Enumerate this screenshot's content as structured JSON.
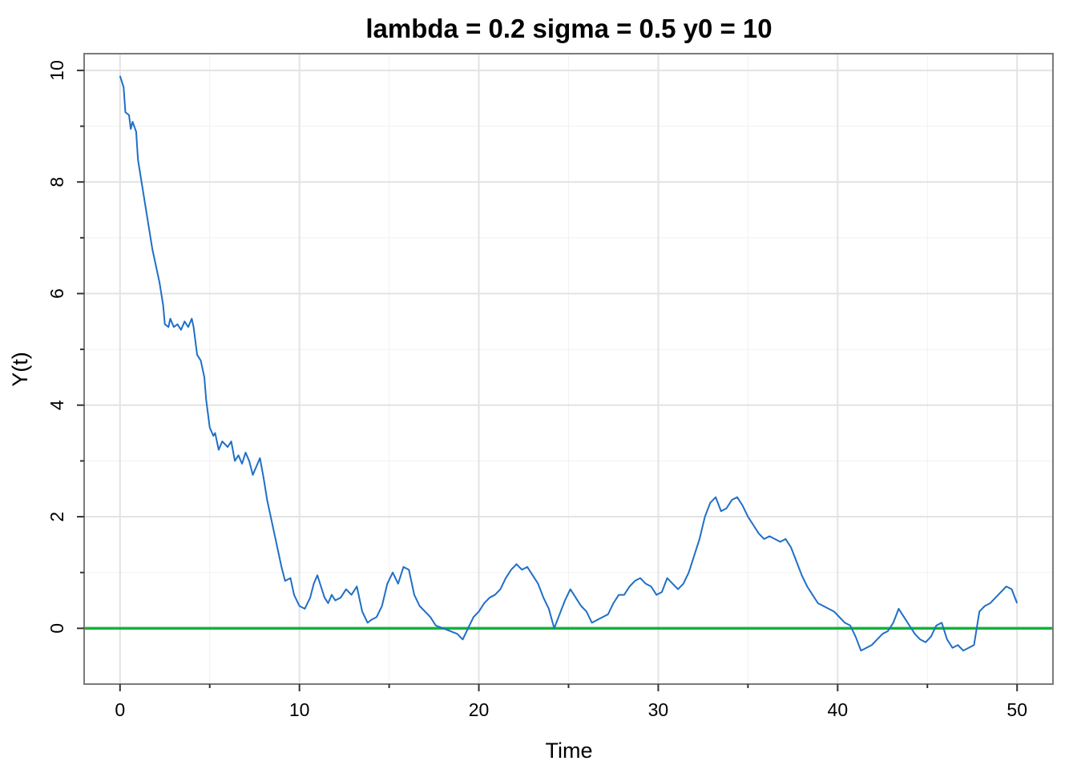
{
  "chart_data": {
    "type": "line",
    "title": "lambda = 0.2 sigma = 0.5 y0 = 10",
    "xlabel": "Time",
    "ylabel": "Y(t)",
    "xlim": [
      -2,
      52
    ],
    "ylim": [
      -1,
      10.3
    ],
    "x_ticks": [
      0,
      10,
      20,
      30,
      40,
      50
    ],
    "x_tick_labels": [
      "0",
      "10",
      "20",
      "30",
      "40",
      "50"
    ],
    "y_ticks": [
      0,
      2,
      4,
      6,
      8,
      10
    ],
    "y_tick_labels": [
      "0",
      "2",
      "4",
      "6",
      "8",
      "10"
    ],
    "grid": true,
    "legend": "none",
    "series": [
      {
        "color": "#1f6fc6",
        "points": [
          [
            0,
            9.9
          ],
          [
            0.2,
            9.7
          ],
          [
            0.3,
            9.25
          ],
          [
            0.5,
            9.2
          ],
          [
            0.6,
            8.95
          ],
          [
            0.7,
            9.08
          ],
          [
            0.9,
            8.9
          ],
          [
            1.0,
            8.4
          ],
          [
            1.2,
            8.0
          ],
          [
            1.3,
            7.8
          ],
          [
            1.5,
            7.4
          ],
          [
            1.6,
            7.2
          ],
          [
            1.8,
            6.8
          ],
          [
            2.0,
            6.5
          ],
          [
            2.2,
            6.2
          ],
          [
            2.4,
            5.8
          ],
          [
            2.5,
            5.45
          ],
          [
            2.7,
            5.4
          ],
          [
            2.8,
            5.55
          ],
          [
            3.0,
            5.4
          ],
          [
            3.2,
            5.45
          ],
          [
            3.4,
            5.35
          ],
          [
            3.6,
            5.5
          ],
          [
            3.8,
            5.4
          ],
          [
            4.0,
            5.55
          ],
          [
            4.1,
            5.4
          ],
          [
            4.3,
            4.9
          ],
          [
            4.5,
            4.8
          ],
          [
            4.7,
            4.5
          ],
          [
            4.8,
            4.1
          ],
          [
            5.0,
            3.6
          ],
          [
            5.2,
            3.45
          ],
          [
            5.3,
            3.5
          ],
          [
            5.5,
            3.2
          ],
          [
            5.7,
            3.35
          ],
          [
            6.0,
            3.25
          ],
          [
            6.2,
            3.35
          ],
          [
            6.4,
            3.0
          ],
          [
            6.6,
            3.1
          ],
          [
            6.8,
            2.95
          ],
          [
            7.0,
            3.15
          ],
          [
            7.2,
            3.0
          ],
          [
            7.4,
            2.75
          ],
          [
            7.6,
            2.9
          ],
          [
            7.8,
            3.05
          ],
          [
            8.0,
            2.7
          ],
          [
            8.2,
            2.3
          ],
          [
            8.4,
            2.0
          ],
          [
            8.6,
            1.7
          ],
          [
            8.8,
            1.4
          ],
          [
            9.0,
            1.1
          ],
          [
            9.2,
            0.85
          ],
          [
            9.5,
            0.9
          ],
          [
            9.7,
            0.6
          ],
          [
            10.0,
            0.4
          ],
          [
            10.3,
            0.35
          ],
          [
            10.6,
            0.55
          ],
          [
            10.8,
            0.8
          ],
          [
            11.0,
            0.95
          ],
          [
            11.2,
            0.75
          ],
          [
            11.4,
            0.55
          ],
          [
            11.6,
            0.45
          ],
          [
            11.8,
            0.6
          ],
          [
            12.0,
            0.5
          ],
          [
            12.3,
            0.55
          ],
          [
            12.6,
            0.7
          ],
          [
            12.9,
            0.6
          ],
          [
            13.2,
            0.75
          ],
          [
            13.5,
            0.3
          ],
          [
            13.8,
            0.1
          ],
          [
            14.0,
            0.15
          ],
          [
            14.3,
            0.2
          ],
          [
            14.6,
            0.4
          ],
          [
            14.9,
            0.8
          ],
          [
            15.2,
            1.0
          ],
          [
            15.5,
            0.8
          ],
          [
            15.8,
            1.1
          ],
          [
            16.1,
            1.05
          ],
          [
            16.4,
            0.6
          ],
          [
            16.7,
            0.4
          ],
          [
            17.0,
            0.3
          ],
          [
            17.3,
            0.2
          ],
          [
            17.6,
            0.05
          ],
          [
            18.0,
            0.0
          ],
          [
            18.4,
            -0.05
          ],
          [
            18.8,
            -0.1
          ],
          [
            19.1,
            -0.2
          ],
          [
            19.4,
            0.0
          ],
          [
            19.7,
            0.2
          ],
          [
            20.0,
            0.3
          ],
          [
            20.3,
            0.45
          ],
          [
            20.6,
            0.55
          ],
          [
            20.9,
            0.6
          ],
          [
            21.2,
            0.7
          ],
          [
            21.5,
            0.9
          ],
          [
            21.8,
            1.05
          ],
          [
            22.1,
            1.15
          ],
          [
            22.4,
            1.05
          ],
          [
            22.7,
            1.1
          ],
          [
            23.0,
            0.95
          ],
          [
            23.3,
            0.8
          ],
          [
            23.6,
            0.55
          ],
          [
            23.9,
            0.35
          ],
          [
            24.2,
            0.0
          ],
          [
            24.5,
            0.25
          ],
          [
            24.8,
            0.5
          ],
          [
            25.1,
            0.7
          ],
          [
            25.4,
            0.55
          ],
          [
            25.7,
            0.4
          ],
          [
            26.0,
            0.3
          ],
          [
            26.3,
            0.1
          ],
          [
            26.6,
            0.15
          ],
          [
            26.9,
            0.2
          ],
          [
            27.2,
            0.25
          ],
          [
            27.5,
            0.45
          ],
          [
            27.8,
            0.6
          ],
          [
            28.1,
            0.6
          ],
          [
            28.4,
            0.75
          ],
          [
            28.7,
            0.85
          ],
          [
            29.0,
            0.9
          ],
          [
            29.3,
            0.8
          ],
          [
            29.6,
            0.75
          ],
          [
            29.9,
            0.6
          ],
          [
            30.2,
            0.65
          ],
          [
            30.5,
            0.9
          ],
          [
            30.8,
            0.8
          ],
          [
            31.1,
            0.7
          ],
          [
            31.4,
            0.8
          ],
          [
            31.7,
            1.0
          ],
          [
            32.0,
            1.3
          ],
          [
            32.3,
            1.6
          ],
          [
            32.6,
            2.0
          ],
          [
            32.9,
            2.25
          ],
          [
            33.2,
            2.35
          ],
          [
            33.5,
            2.1
          ],
          [
            33.8,
            2.15
          ],
          [
            34.1,
            2.3
          ],
          [
            34.4,
            2.35
          ],
          [
            34.7,
            2.2
          ],
          [
            35.0,
            2.0
          ],
          [
            35.3,
            1.85
          ],
          [
            35.6,
            1.7
          ],
          [
            35.9,
            1.6
          ],
          [
            36.2,
            1.65
          ],
          [
            36.5,
            1.6
          ],
          [
            36.8,
            1.55
          ],
          [
            37.1,
            1.6
          ],
          [
            37.4,
            1.45
          ],
          [
            37.7,
            1.2
          ],
          [
            38.0,
            0.95
          ],
          [
            38.3,
            0.75
          ],
          [
            38.6,
            0.6
          ],
          [
            38.9,
            0.45
          ],
          [
            39.2,
            0.4
          ],
          [
            39.5,
            0.35
          ],
          [
            39.8,
            0.3
          ],
          [
            40.1,
            0.2
          ],
          [
            40.4,
            0.1
          ],
          [
            40.7,
            0.05
          ],
          [
            41.0,
            -0.15
          ],
          [
            41.3,
            -0.4
          ],
          [
            41.6,
            -0.35
          ],
          [
            41.9,
            -0.3
          ],
          [
            42.2,
            -0.2
          ],
          [
            42.5,
            -0.1
          ],
          [
            42.8,
            -0.05
          ],
          [
            43.1,
            0.1
          ],
          [
            43.4,
            0.35
          ],
          [
            43.7,
            0.2
          ],
          [
            44.0,
            0.05
          ],
          [
            44.3,
            -0.1
          ],
          [
            44.6,
            -0.2
          ],
          [
            44.9,
            -0.25
          ],
          [
            45.2,
            -0.15
          ],
          [
            45.5,
            0.05
          ],
          [
            45.8,
            0.1
          ],
          [
            46.1,
            -0.2
          ],
          [
            46.4,
            -0.35
          ],
          [
            46.7,
            -0.3
          ],
          [
            47.0,
            -0.4
          ],
          [
            47.3,
            -0.35
          ],
          [
            47.6,
            -0.3
          ],
          [
            47.9,
            0.3
          ],
          [
            48.2,
            0.4
          ],
          [
            48.5,
            0.45
          ],
          [
            48.8,
            0.55
          ],
          [
            49.1,
            0.65
          ],
          [
            49.4,
            0.75
          ],
          [
            49.7,
            0.7
          ],
          [
            50.0,
            0.45
          ]
        ]
      }
    ],
    "reference_lines": [
      {
        "y": 0,
        "color": "#14b33c"
      }
    ]
  }
}
